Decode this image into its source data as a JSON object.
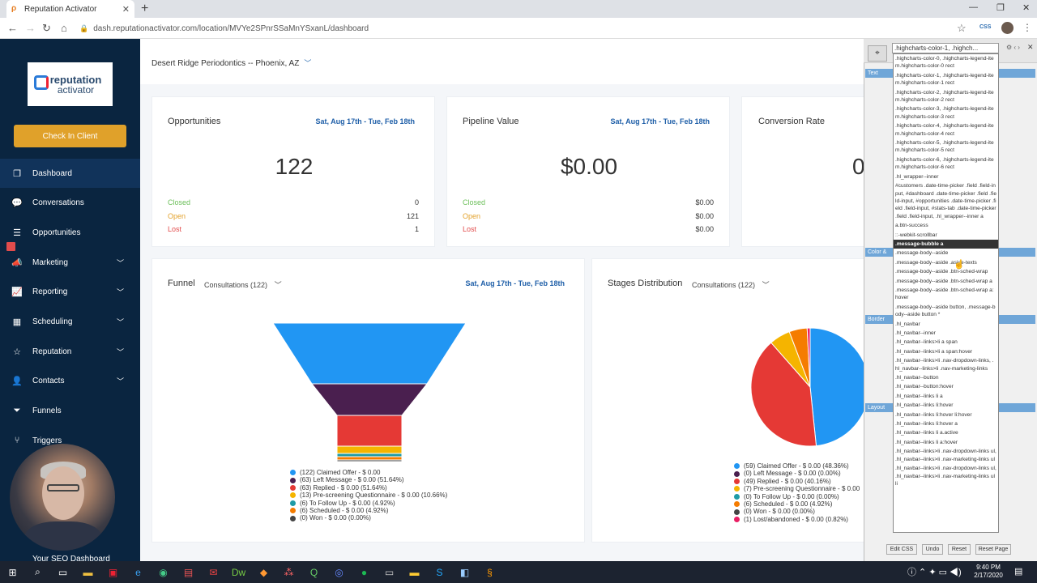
{
  "browser": {
    "tab_title": "Reputation Activator",
    "url": "dash.reputationactivator.com/location/MVYe2SPnrSSaMnYSxanL/dashboard",
    "ext_label": "CSS"
  },
  "sidebar": {
    "logo_line1": "reputation",
    "logo_line2": "activator",
    "check_in": "Check In Client",
    "items": [
      {
        "label": "Dashboard",
        "icon": "dashboard-icon"
      },
      {
        "label": "Conversations",
        "icon": "chat-icon"
      },
      {
        "label": "Opportunities",
        "icon": "stack-icon"
      },
      {
        "label": "Marketing",
        "icon": "megaphone-icon"
      },
      {
        "label": "Reporting",
        "icon": "chart-icon"
      },
      {
        "label": "Scheduling",
        "icon": "calendar-icon"
      },
      {
        "label": "Reputation",
        "icon": "star-icon"
      },
      {
        "label": "Contacts",
        "icon": "person-icon"
      },
      {
        "label": "Funnels",
        "icon": "funnel-icon"
      },
      {
        "label": "Triggers",
        "icon": "trigger-icon"
      }
    ],
    "footer": "Your SEO Dashboard"
  },
  "header": {
    "location": "Desert Ridge Periodontics -- Phoenix, AZ"
  },
  "cards": {
    "opportunities": {
      "title": "Opportunities",
      "date": "Sat, Aug 17th - Tue, Feb 18th",
      "value": "122",
      "closed_label": "Closed",
      "closed": "0",
      "open_label": "Open",
      "open": "121",
      "lost_label": "Lost",
      "lost": "1"
    },
    "pipeline": {
      "title": "Pipeline Value",
      "date": "Sat, Aug 17th - Tue, Feb 18th",
      "value": "$0.00",
      "closed_label": "Closed",
      "closed": "$0.00",
      "open_label": "Open",
      "open": "$0.00",
      "lost_label": "Lost",
      "lost": "$0.00"
    },
    "conversion": {
      "title": "Conversion Rate",
      "value": "0"
    }
  },
  "funnel": {
    "title": "Funnel",
    "pipeline": "Consultations (122)",
    "date": "Sat, Aug 17th - Tue, Feb 18th",
    "legend": [
      {
        "text": "(122) Claimed Offer - $ 0.00",
        "color": "#2196f3"
      },
      {
        "text": "(63) Left Message - $ 0.00 (51.64%)",
        "color": "#4a1f4f"
      },
      {
        "text": "(63) Replied - $ 0.00 (51.64%)",
        "color": "#e53935"
      },
      {
        "text": "(13) Pre-screening Questionnaire - $ 0.00 (10.66%)",
        "color": "#f5b400"
      },
      {
        "text": "(6) To Follow Up - $ 0.00 (4.92%)",
        "color": "#1e9ba6"
      },
      {
        "text": "(6) Scheduled - $ 0.00 (4.92%)",
        "color": "#f57c00"
      },
      {
        "text": "(0) Won - $ 0.00 (0.00%)",
        "color": "#444444"
      }
    ]
  },
  "stages": {
    "title": "Stages Distribution",
    "pipeline": "Consultations (122)",
    "legend": [
      {
        "text": "(59) Claimed Offer - $ 0.00 (48.36%)",
        "color": "#2196f3"
      },
      {
        "text": "(0) Left Message - $ 0.00 (0.00%)",
        "color": "#4a1f4f"
      },
      {
        "text": "(49) Replied - $ 0.00 (40.16%)",
        "color": "#e53935"
      },
      {
        "text": "(7) Pre-screening Questionnaire - $ 0.00",
        "color": "#f5b400"
      },
      {
        "text": "(0) To Follow Up - $ 0.00 (0.00%)",
        "color": "#1e9ba6"
      },
      {
        "text": "(6) Scheduled - $ 0.00 (4.92%)",
        "color": "#f57c00"
      },
      {
        "text": "(0) Won - $ 0.00 (0.00%)",
        "color": "#444444"
      },
      {
        "text": "(1) Lost/abandoned - $ 0.00 (0.82%)",
        "color": "#e91e63"
      }
    ]
  },
  "css_panel": {
    "selector": ".highcharts-color-1, .highch...",
    "sections": [
      "Text",
      "Color &",
      "Border",
      "Layout"
    ],
    "options": [
      ".highcharts-color-0, .highcharts-legend-item.highcharts-color-0 rect",
      ".highcharts-color-1, .highcharts-legend-item.highcharts-color-1 rect",
      ".highcharts-color-2, .highcharts-legend-item.highcharts-color-2 rect",
      ".highcharts-color-3, .highcharts-legend-item.highcharts-color-3 rect",
      ".highcharts-color-4, .highcharts-legend-item.highcharts-color-4 rect",
      ".highcharts-color-5, .highcharts-legend-item.highcharts-color-5 rect",
      ".highcharts-color-6, .highcharts-legend-item.highcharts-color-6 rect",
      ".hl_wrapper--inner",
      "#customers .date-time-picker .field .field-input, #dashboard .date-time-picker .field .field-input, #opportunities .date-time-picker .field .field-input, #stats-tab .date-time-picker .field .field-input, .hl_wrapper--inner a",
      "a.btn-success",
      "::-webkit-scrollbar",
      ".message-bubble a",
      ".message-body--aside",
      ".message-body--aside .aside-texts",
      ".message-body--aside .btn-sched-wrap",
      ".message-body--aside .btn-sched-wrap a",
      ".message-body--aside .btn-sched-wrap a:hover",
      ".message-body--aside button, .message-body--aside button *",
      ".hl_navbar",
      ".hl_navbar--inner",
      ".hl_navbar--links>li a span",
      ".hl_navbar--links>li a span:hover",
      ".hl_navbar--links>li .nav-dropdown-links, .hl_navbar--links>li .nav-marketing-links",
      ".hl_navbar--button",
      ".hl_navbar--button:hover",
      ".hl_navbar--links li a",
      ".hl_navbar--links li:hover",
      ".hl_navbar--links li:hover li:hover",
      ".hl_navbar--links li:hover a",
      ".hl_navbar--links li a.active",
      ".hl_navbar--links li a:hover",
      ".hl_navbar--links>li .nav-dropdown-links ul, .hl_navbar--links>li .nav-marketing-links ul",
      ".hl_navbar--links>li .nav-dropdown-links ul, .hl_navbar--links>li .nav-marketing-links ul li"
    ],
    "selected_index": 11,
    "buttons": [
      "Edit CSS",
      "Undo",
      "Reset",
      "Reset Page"
    ]
  },
  "taskbar": {
    "time": "9:40 PM",
    "date": "2/17/2020"
  },
  "chart_data": [
    {
      "type": "funnel",
      "categories": [
        "Claimed Offer",
        "Left Message",
        "Replied",
        "Pre-screening Questionnaire",
        "To Follow Up",
        "Scheduled",
        "Won"
      ],
      "values": [
        122,
        63,
        63,
        13,
        6,
        6,
        0
      ]
    },
    {
      "type": "pie",
      "categories": [
        "Claimed Offer",
        "Left Message",
        "Replied",
        "Pre-screening Questionnaire",
        "To Follow Up",
        "Scheduled",
        "Won",
        "Lost/abandoned"
      ],
      "values": [
        59,
        0,
        49,
        7,
        0,
        6,
        0,
        1
      ]
    }
  ]
}
